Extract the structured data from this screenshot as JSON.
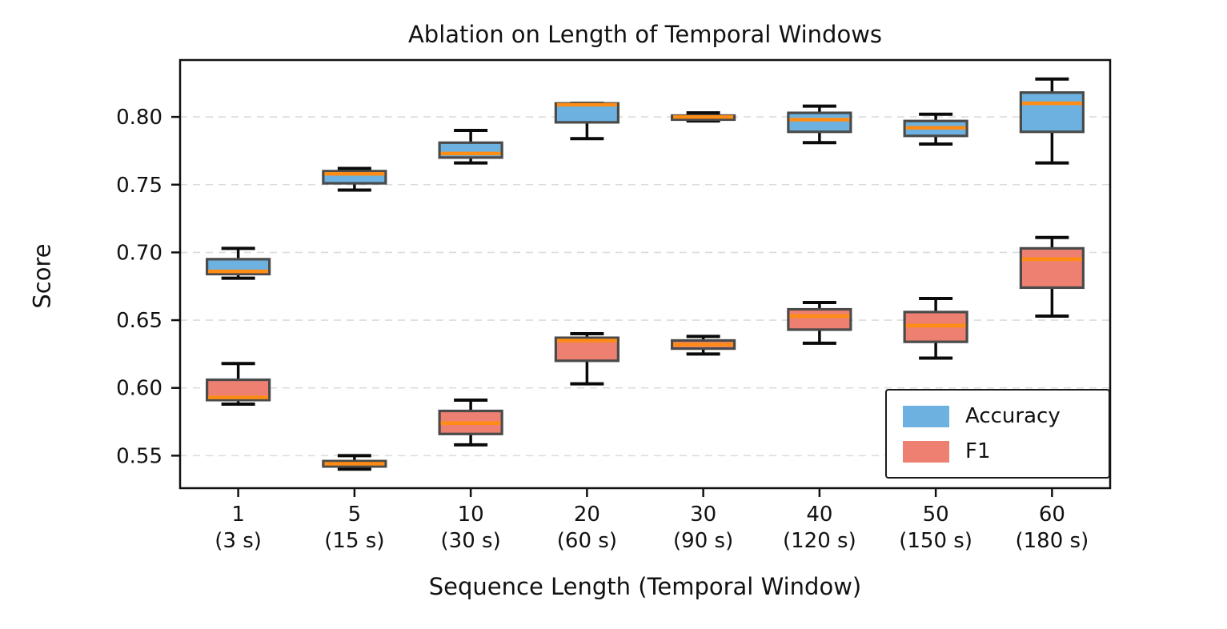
{
  "chart_data": {
    "type": "boxplot",
    "title": "Ablation on Length of Temporal Windows",
    "xlabel": "Sequence Length (Temporal Window)",
    "ylabel": "Score",
    "ylim": [
      0.526,
      0.842
    ],
    "y_ticks": [
      0.55,
      0.6,
      0.65,
      0.7,
      0.75,
      0.8
    ],
    "y_tick_labels": [
      "0.55",
      "0.60",
      "0.65",
      "0.70",
      "0.75",
      "0.80"
    ],
    "grid": "horizontal-dashed",
    "categories": [
      {
        "label": "1",
        "sublabel": "(3 s)"
      },
      {
        "label": "5",
        "sublabel": "(15 s)"
      },
      {
        "label": "10",
        "sublabel": "(30 s)"
      },
      {
        "label": "20",
        "sublabel": "(60 s)"
      },
      {
        "label": "30",
        "sublabel": "(90 s)"
      },
      {
        "label": "40",
        "sublabel": "(120 s)"
      },
      {
        "label": "50",
        "sublabel": "(150 s)"
      },
      {
        "label": "60",
        "sublabel": "(180 s)"
      }
    ],
    "series": [
      {
        "name": "Accuracy",
        "color": "#6db1e0",
        "boxes": [
          {
            "whislo": 0.681,
            "q1": 0.684,
            "med": 0.686,
            "q3": 0.695,
            "whishi": 0.703
          },
          {
            "whislo": 0.746,
            "q1": 0.751,
            "med": 0.758,
            "q3": 0.76,
            "whishi": 0.762
          },
          {
            "whislo": 0.766,
            "q1": 0.77,
            "med": 0.773,
            "q3": 0.781,
            "whishi": 0.79
          },
          {
            "whislo": 0.784,
            "q1": 0.796,
            "med": 0.809,
            "q3": 0.81,
            "whishi": 0.81
          },
          {
            "whislo": 0.797,
            "q1": 0.798,
            "med": 0.8,
            "q3": 0.801,
            "whishi": 0.803
          },
          {
            "whislo": 0.781,
            "q1": 0.789,
            "med": 0.798,
            "q3": 0.803,
            "whishi": 0.808
          },
          {
            "whislo": 0.78,
            "q1": 0.786,
            "med": 0.792,
            "q3": 0.797,
            "whishi": 0.802
          },
          {
            "whislo": 0.766,
            "q1": 0.789,
            "med": 0.81,
            "q3": 0.818,
            "whishi": 0.828
          }
        ]
      },
      {
        "name": "F1",
        "color": "#ed8070",
        "boxes": [
          {
            "whislo": 0.588,
            "q1": 0.591,
            "med": 0.593,
            "q3": 0.606,
            "whishi": 0.618
          },
          {
            "whislo": 0.54,
            "q1": 0.542,
            "med": 0.544,
            "q3": 0.546,
            "whishi": 0.55
          },
          {
            "whislo": 0.558,
            "q1": 0.566,
            "med": 0.574,
            "q3": 0.583,
            "whishi": 0.591
          },
          {
            "whislo": 0.603,
            "q1": 0.62,
            "med": 0.635,
            "q3": 0.637,
            "whishi": 0.64
          },
          {
            "whislo": 0.625,
            "q1": 0.629,
            "med": 0.632,
            "q3": 0.635,
            "whishi": 0.638
          },
          {
            "whislo": 0.633,
            "q1": 0.643,
            "med": 0.653,
            "q3": 0.658,
            "whishi": 0.663
          },
          {
            "whislo": 0.622,
            "q1": 0.634,
            "med": 0.646,
            "q3": 0.656,
            "whishi": 0.666
          },
          {
            "whislo": 0.653,
            "q1": 0.674,
            "med": 0.695,
            "q3": 0.703,
            "whishi": 0.711
          }
        ]
      }
    ],
    "legend": {
      "position": "lower right",
      "entries": [
        {
          "label": "Accuracy",
          "color": "#6db1e0"
        },
        {
          "label": "F1",
          "color": "#ed8070"
        }
      ]
    },
    "style": {
      "median_color": "#ff8c15",
      "box_edge_color": "#4a4a4a",
      "whisker_color": "#0a0a0a",
      "grid_color": "#dcdcdc",
      "frame_color": "#111111"
    }
  }
}
